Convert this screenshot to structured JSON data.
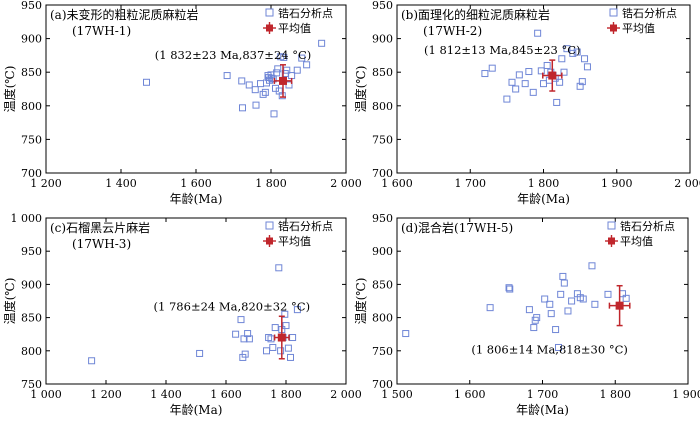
{
  "chart_data": [
    {
      "type": "scatter",
      "title": "(a)未变形的粗粒泥质麻粒岩",
      "subtitle": "(17WH-1)",
      "xlabel": "年龄(Ma)",
      "ylabel": "温度(℃)",
      "xlim": [
        1200,
        2000
      ],
      "ylim": [
        700,
        950
      ],
      "xticks": [
        1200,
        1400,
        1600,
        1800,
        2000
      ],
      "xtick_labels": [
        "1 200",
        "1 400",
        "1 600",
        "1 800",
        "2 000"
      ],
      "yticks": [
        700,
        750,
        800,
        850,
        900,
        950
      ],
      "ytick_labels": [
        "700",
        "750",
        "800",
        "850",
        "900",
        "950"
      ],
      "legend": {
        "placement": "top-right",
        "entries": [
          "锆石分析点",
          "平均值"
        ]
      },
      "series": [
        {
          "name": "锆石分析点",
          "points": [
            [
              1468,
              835
            ],
            [
              1683,
              845
            ],
            [
              1722,
              837
            ],
            [
              1724,
              797
            ],
            [
              1742,
              831
            ],
            [
              1758,
              824
            ],
            [
              1760,
              801
            ],
            [
              1772,
              833
            ],
            [
              1779,
              817
            ],
            [
              1785,
              820
            ],
            [
              1788,
              834
            ],
            [
              1792,
              845
            ],
            [
              1794,
              842
            ],
            [
              1796,
              838
            ],
            [
              1800,
              846
            ],
            [
              1802,
              841
            ],
            [
              1806,
              840
            ],
            [
              1808,
              788
            ],
            [
              1812,
              826
            ],
            [
              1815,
              849
            ],
            [
              1818,
              855
            ],
            [
              1822,
              822
            ],
            [
              1826,
              873
            ],
            [
              1830,
              815
            ],
            [
              1834,
              872
            ],
            [
              1838,
              848
            ],
            [
              1842,
              853
            ],
            [
              1848,
              831
            ],
            [
              1855,
              845
            ],
            [
              1870,
              853
            ],
            [
              1882,
              871
            ],
            [
              1895,
              861
            ],
            [
              1935,
              893
            ]
          ]
        },
        {
          "name": "平均值",
          "x": 1832,
          "y": 837,
          "xerr": 23,
          "yerr": 24
        }
      ],
      "annotation": "(1 832±23 Ma,837±24 °C)"
    },
    {
      "type": "scatter",
      "title": "(b)面理化的细粒泥质麻粒岩",
      "subtitle": "(17WH-2)",
      "xlabel": "年龄(Ma)",
      "ylabel": "温度(℃)",
      "xlim": [
        1600,
        2000
      ],
      "ylim": [
        700,
        950
      ],
      "xticks": [
        1600,
        1700,
        1800,
        1900,
        2000
      ],
      "xtick_labels": [
        "1 600",
        "1 700",
        "1 800",
        "1 900",
        "2 000"
      ],
      "yticks": [
        700,
        750,
        800,
        850,
        900,
        950
      ],
      "ytick_labels": [
        "700",
        "750",
        "800",
        "850",
        "900",
        "950"
      ],
      "legend": {
        "placement": "top-right",
        "entries": [
          "锆石分析点",
          "平均值"
        ]
      },
      "series": [
        {
          "name": "锆石分析点",
          "points": [
            [
              1720,
              848
            ],
            [
              1730,
              856
            ],
            [
              1750,
              810
            ],
            [
              1757,
              835
            ],
            [
              1762,
              825
            ],
            [
              1767,
              846
            ],
            [
              1775,
              833
            ],
            [
              1780,
              851
            ],
            [
              1786,
              820
            ],
            [
              1792,
              908
            ],
            [
              1797,
              852
            ],
            [
              1800,
              833
            ],
            [
              1805,
              860
            ],
            [
              1808,
              838
            ],
            [
              1810,
              850
            ],
            [
              1813,
              845
            ],
            [
              1816,
              841
            ],
            [
              1818,
              805
            ],
            [
              1822,
              835
            ],
            [
              1825,
              870
            ],
            [
              1828,
              850
            ],
            [
              1832,
              885
            ],
            [
              1840,
              878
            ],
            [
              1846,
              880
            ],
            [
              1850,
              829
            ],
            [
              1853,
              836
            ],
            [
              1856,
              870
            ],
            [
              1860,
              858
            ]
          ]
        },
        {
          "name": "平均值",
          "x": 1812,
          "y": 845,
          "xerr": 13,
          "yerr": 23
        }
      ],
      "annotation": "(1 812±13 Ma,845±23 °C)"
    },
    {
      "type": "scatter",
      "title": "(c)石榴黑云片麻岩",
      "subtitle": "(17WH-3)",
      "xlabel": "年龄(Ma)",
      "ylabel": "温度(℃)",
      "xlim": [
        1000,
        2000
      ],
      "ylim": [
        750,
        1000
      ],
      "xticks": [
        1000,
        1200,
        1400,
        1600,
        1800,
        2000
      ],
      "xtick_labels": [
        "1 000",
        "1 200",
        "1 400",
        "1 600",
        "1 800",
        "2 000"
      ],
      "yticks": [
        750,
        800,
        850,
        900,
        950,
        1000
      ],
      "ytick_labels": [
        "750",
        "800",
        "850",
        "900",
        "950",
        "1 000"
      ],
      "legend": {
        "placement": "top-right",
        "entries": [
          "锆石分析点",
          "平均值"
        ]
      },
      "series": [
        {
          "name": "锆石分析点",
          "points": [
            [
              1152,
              785
            ],
            [
              1512,
              796
            ],
            [
              1632,
              825
            ],
            [
              1650,
              847
            ],
            [
              1656,
              790
            ],
            [
              1660,
              818
            ],
            [
              1664,
              795
            ],
            [
              1672,
              826
            ],
            [
              1678,
              818
            ],
            [
              1735,
              800
            ],
            [
              1742,
              820
            ],
            [
              1750,
              818
            ],
            [
              1756,
              805
            ],
            [
              1764,
              835
            ],
            [
              1776,
              925
            ],
            [
              1782,
              800
            ],
            [
              1786,
              832
            ],
            [
              1790,
              820
            ],
            [
              1796,
              855
            ],
            [
              1800,
              838
            ],
            [
              1808,
              804
            ],
            [
              1815,
              790
            ],
            [
              1822,
              820
            ],
            [
              1838,
              862
            ]
          ]
        },
        {
          "name": "平均值",
          "x": 1786,
          "y": 820,
          "xerr": 24,
          "yerr": 32
        }
      ],
      "annotation": "(1 786±24 Ma,820±32 °C)"
    },
    {
      "type": "scatter",
      "title": "(d)混合岩(17WH-5)",
      "subtitle": "",
      "xlabel": "年龄(Ma)",
      "ylabel": "温度(℃)",
      "xlim": [
        1500,
        1900
      ],
      "ylim": [
        700,
        950
      ],
      "xticks": [
        1500,
        1600,
        1700,
        1800,
        1900
      ],
      "xtick_labels": [
        "1 500",
        "1 600",
        "1 700",
        "1 800",
        "1 900"
      ],
      "yticks": [
        700,
        750,
        800,
        850,
        900,
        950
      ],
      "ytick_labels": [
        "700",
        "750",
        "800",
        "850",
        "900",
        "950"
      ],
      "legend": {
        "placement": "top-right",
        "entries": [
          "锆石分析点",
          "平均值"
        ]
      },
      "series": [
        {
          "name": "锆石分析点",
          "points": [
            [
              1512,
              776
            ],
            [
              1628,
              815
            ],
            [
              1654,
              845
            ],
            [
              1655,
              843
            ],
            [
              1682,
              812
            ],
            [
              1688,
              785
            ],
            [
              1690,
              796
            ],
            [
              1692,
              800
            ],
            [
              1703,
              828
            ],
            [
              1710,
              820
            ],
            [
              1712,
              806
            ],
            [
              1718,
              782
            ],
            [
              1722,
              755
            ],
            [
              1725,
              835
            ],
            [
              1728,
              862
            ],
            [
              1730,
              852
            ],
            [
              1735,
              810
            ],
            [
              1740,
              825
            ],
            [
              1748,
              836
            ],
            [
              1752,
              830
            ],
            [
              1756,
              828
            ],
            [
              1768,
              878
            ],
            [
              1772,
              820
            ],
            [
              1790,
              835
            ],
            [
              1810,
              836
            ],
            [
              1815,
              829
            ]
          ]
        },
        {
          "name": "平均值",
          "x": 1806,
          "y": 818,
          "xerr": 14,
          "yerr": 30
        }
      ],
      "annotation": "(1 806±14 Ma,818±30 °C)"
    }
  ],
  "colors": {
    "points": "#6f86d6",
    "mean": "#c0262c",
    "axis": "#000000"
  }
}
